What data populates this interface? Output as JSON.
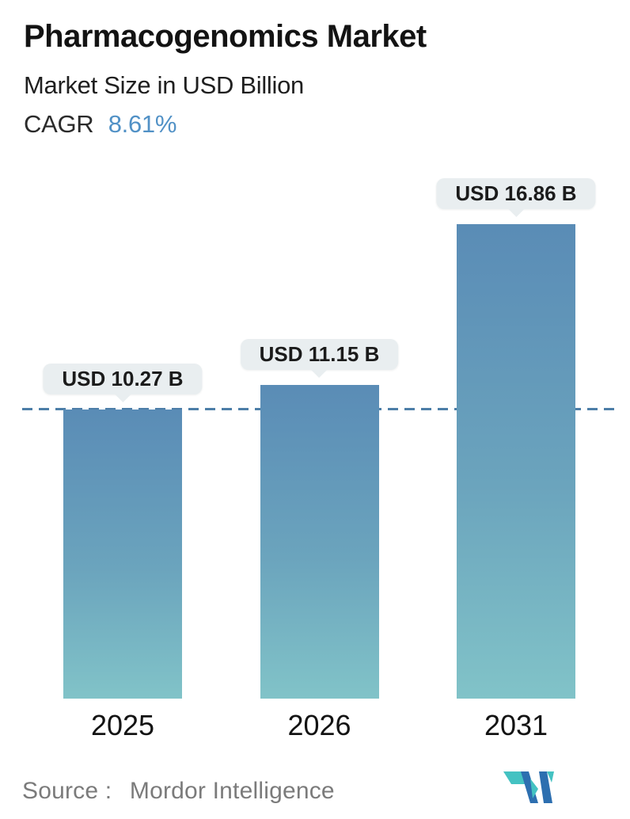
{
  "header": {
    "title": "Pharmacogenomics Market",
    "subtitle": "Market Size in USD Billion",
    "cagr_label": "CAGR",
    "cagr_value": "8.61%",
    "cagr_value_color": "#5191c6"
  },
  "chart_data": {
    "type": "bar",
    "title": "Pharmacogenomics Market",
    "subtitle": "Market Size in USD Billion",
    "unit": "USD Billion",
    "cagr_pct": 8.61,
    "categories": [
      "2025",
      "2026",
      "2031"
    ],
    "values": [
      10.27,
      11.15,
      16.86
    ],
    "value_labels": [
      "USD 10.27 B",
      "USD 11.15 B",
      "USD 16.86 B"
    ],
    "ylim": [
      0,
      17
    ],
    "grid": false,
    "legend": false,
    "xlabel": "",
    "ylabel": "",
    "reference_line": {
      "style": "dashed",
      "at_value": 10.27,
      "color": "#4d7ea8"
    },
    "bar_gradient": {
      "top": "#5a8cb6",
      "bottom": "#81c3c8"
    },
    "label_bubble": {
      "background": "#e9eef0",
      "text_color": "#1b1b1b"
    }
  },
  "footer": {
    "source_label": "Source :",
    "source_value": "Mordor Intelligence",
    "logo_name": "mordor-intelligence-logo",
    "logo_colors": {
      "teal": "#44c2c2",
      "blue": "#2d6fb0"
    }
  }
}
